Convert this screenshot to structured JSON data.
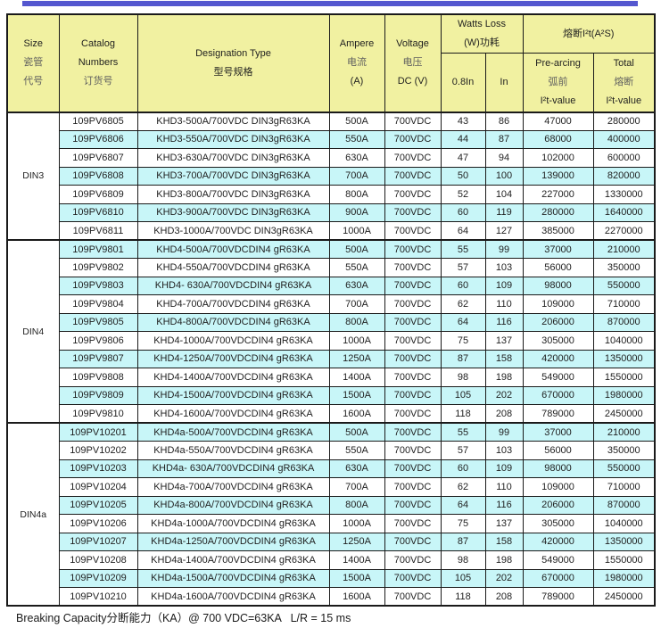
{
  "accent": {
    "top_bar_color": "#5457cf",
    "header_bg": "#f1f1a1",
    "row_alt_bg": "#c8f6f8",
    "border_color": "#1a1a1a"
  },
  "table": {
    "header": {
      "size": [
        "Size",
        "瓷管",
        "代号"
      ],
      "catalog": [
        "Catalog",
        "Numbers",
        "订货号"
      ],
      "designation": [
        "Designation Type",
        "型号规格"
      ],
      "ampere": [
        "Ampere",
        "电流",
        "(A)"
      ],
      "voltage": [
        "Voltage",
        "电压",
        "DC (V)"
      ],
      "watts_group": [
        "Watts Loss",
        "(W)功耗"
      ],
      "i2t_group": "熔断I²t(A²S)",
      "watts_sub_08": "0.8In",
      "watts_sub_in": "In",
      "prearcing": [
        "Pre-arcing",
        "弧前",
        "I²t-value"
      ],
      "total": [
        "Total",
        "熔断",
        "I²t-value"
      ]
    },
    "sections": [
      {
        "size_label": "DIN3",
        "rows": [
          {
            "catalog": "109PV6805",
            "designation": "KHD3-500A/700VDC DIN3gR63KA",
            "ampere": "500A",
            "voltage": "700VDC",
            "watts_08": "43",
            "watts_in": "86",
            "prearc": "47000",
            "total": "280000"
          },
          {
            "catalog": "109PV6806",
            "designation": "KHD3-550A/700VDC DIN3gR63KA",
            "ampere": "550A",
            "voltage": "700VDC",
            "watts_08": "44",
            "watts_in": "87",
            "prearc": "68000",
            "total": "400000"
          },
          {
            "catalog": "109PV6807",
            "designation": "KHD3-630A/700VDC DIN3gR63KA",
            "ampere": "630A",
            "voltage": "700VDC",
            "watts_08": "47",
            "watts_in": "94",
            "prearc": "102000",
            "total": "600000"
          },
          {
            "catalog": "109PV6808",
            "designation": "KHD3-700A/700VDC DIN3gR63KA",
            "ampere": "700A",
            "voltage": "700VDC",
            "watts_08": "50",
            "watts_in": "100",
            "prearc": "139000",
            "total": "820000"
          },
          {
            "catalog": "109PV6809",
            "designation": "KHD3-800A/700VDC DIN3gR63KA",
            "ampere": "800A",
            "voltage": "700VDC",
            "watts_08": "52",
            "watts_in": "104",
            "prearc": "227000",
            "total": "1330000"
          },
          {
            "catalog": "109PV6810",
            "designation": "KHD3-900A/700VDC DIN3gR63KA",
            "ampere": "900A",
            "voltage": "700VDC",
            "watts_08": "60",
            "watts_in": "119",
            "prearc": "280000",
            "total": "1640000"
          },
          {
            "catalog": "109PV6811",
            "designation": "KHD3-1000A/700VDC DIN3gR63KA",
            "ampere": "1000A",
            "voltage": "700VDC",
            "watts_08": "64",
            "watts_in": "127",
            "prearc": "385000",
            "total": "2270000"
          }
        ]
      },
      {
        "size_label": "DIN4",
        "rows": [
          {
            "catalog": "109PV9801",
            "designation": "KHD4-500A/700VDCDIN4 gR63KA",
            "ampere": "500A",
            "voltage": "700VDC",
            "watts_08": "55",
            "watts_in": "99",
            "prearc": "37000",
            "total": "210000"
          },
          {
            "catalog": "109PV9802",
            "designation": "KHD4-550A/700VDCDIN4 gR63KA",
            "ampere": "550A",
            "voltage": "700VDC",
            "watts_08": "57",
            "watts_in": "103",
            "prearc": "56000",
            "total": "350000"
          },
          {
            "catalog": "109PV9803",
            "designation": "KHD4- 630A/700VDCDIN4 gR63KA",
            "ampere": "630A",
            "voltage": "700VDC",
            "watts_08": "60",
            "watts_in": "109",
            "prearc": "98000",
            "total": "550000"
          },
          {
            "catalog": "109PV9804",
            "designation": "KHD4-700A/700VDCDIN4 gR63KA",
            "ampere": "700A",
            "voltage": "700VDC",
            "watts_08": "62",
            "watts_in": "110",
            "prearc": "109000",
            "total": "710000"
          },
          {
            "catalog": "109PV9805",
            "designation": "KHD4-800A/700VDCDIN4 gR63KA",
            "ampere": "800A",
            "voltage": "700VDC",
            "watts_08": "64",
            "watts_in": "116",
            "prearc": "206000",
            "total": "870000"
          },
          {
            "catalog": "109PV9806",
            "designation": "KHD4-1000A/700VDCDIN4 gR63KA",
            "ampere": "1000A",
            "voltage": "700VDC",
            "watts_08": "75",
            "watts_in": "137",
            "prearc": "305000",
            "total": "1040000"
          },
          {
            "catalog": "109PV9807",
            "designation": "KHD4-1250A/700VDCDIN4 gR63KA",
            "ampere": "1250A",
            "voltage": "700VDC",
            "watts_08": "87",
            "watts_in": "158",
            "prearc": "420000",
            "total": "1350000"
          },
          {
            "catalog": "109PV9808",
            "designation": "KHD4-1400A/700VDCDIN4 gR63KA",
            "ampere": "1400A",
            "voltage": "700VDC",
            "watts_08": "98",
            "watts_in": "198",
            "prearc": "549000",
            "total": "1550000"
          },
          {
            "catalog": "109PV9809",
            "designation": "KHD4-1500A/700VDCDIN4 gR63KA",
            "ampere": "1500A",
            "voltage": "700VDC",
            "watts_08": "105",
            "watts_in": "202",
            "prearc": "670000",
            "total": "1980000"
          },
          {
            "catalog": "109PV9810",
            "designation": "KHD4-1600A/700VDCDIN4 gR63KA",
            "ampere": "1600A",
            "voltage": "700VDC",
            "watts_08": "118",
            "watts_in": "208",
            "prearc": "789000",
            "total": "2450000"
          }
        ]
      },
      {
        "size_label": "DIN4a",
        "rows": [
          {
            "catalog": "109PV10201",
            "designation": "KHD4a-500A/700VDCDIN4 gR63KA",
            "ampere": "500A",
            "voltage": "700VDC",
            "watts_08": "55",
            "watts_in": "99",
            "prearc": "37000",
            "total": "210000"
          },
          {
            "catalog": "109PV10202",
            "designation": "KHD4a-550A/700VDCDIN4 gR63KA",
            "ampere": "550A",
            "voltage": "700VDC",
            "watts_08": "57",
            "watts_in": "103",
            "prearc": "56000",
            "total": "350000"
          },
          {
            "catalog": "109PV10203",
            "designation": "KHD4a- 630A/700VDCDIN4 gR63KA",
            "ampere": "630A",
            "voltage": "700VDC",
            "watts_08": "60",
            "watts_in": "109",
            "prearc": "98000",
            "total": "550000"
          },
          {
            "catalog": "109PV10204",
            "designation": "KHD4a-700A/700VDCDIN4 gR63KA",
            "ampere": "700A",
            "voltage": "700VDC",
            "watts_08": "62",
            "watts_in": "110",
            "prearc": "109000",
            "total": "710000"
          },
          {
            "catalog": "109PV10205",
            "designation": "KHD4a-800A/700VDCDIN4 gR63KA",
            "ampere": "800A",
            "voltage": "700VDC",
            "watts_08": "64",
            "watts_in": "116",
            "prearc": "206000",
            "total": "870000"
          },
          {
            "catalog": "109PV10206",
            "designation": "KHD4a-1000A/700VDCDIN4 gR63KA",
            "ampere": "1000A",
            "voltage": "700VDC",
            "watts_08": "75",
            "watts_in": "137",
            "prearc": "305000",
            "total": "1040000"
          },
          {
            "catalog": "109PV10207",
            "designation": "KHD4a-1250A/700VDCDIN4 gR63KA",
            "ampere": "1250A",
            "voltage": "700VDC",
            "watts_08": "87",
            "watts_in": "158",
            "prearc": "420000",
            "total": "1350000"
          },
          {
            "catalog": "109PV10208",
            "designation": "KHD4a-1400A/700VDCDIN4 gR63KA",
            "ampere": "1400A",
            "voltage": "700VDC",
            "watts_08": "98",
            "watts_in": "198",
            "prearc": "549000",
            "total": "1550000"
          },
          {
            "catalog": "109PV10209",
            "designation": "KHD4a-1500A/700VDCDIN4 gR63KA",
            "ampere": "1500A",
            "voltage": "700VDC",
            "watts_08": "105",
            "watts_in": "202",
            "prearc": "670000",
            "total": "1980000"
          },
          {
            "catalog": "109PV10210",
            "designation": "KHD4a-1600A/700VDCDIN4 gR63KA",
            "ampere": "1600A",
            "voltage": "700VDC",
            "watts_08": "118",
            "watts_in": "208",
            "prearc": "789000",
            "total": "2450000"
          }
        ]
      }
    ]
  },
  "footer": {
    "note": "Breaking Capacity分断能力（KA）@ 700 VDC=63KA   L/R = 15 ms"
  }
}
